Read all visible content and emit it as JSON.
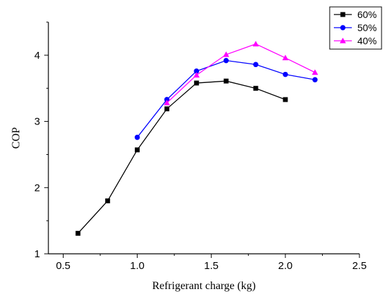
{
  "chart_data": {
    "type": "line",
    "title": "",
    "xlabel": "Refrigerant charge (kg)",
    "ylabel": "COP",
    "xlim": [
      0.4,
      2.5
    ],
    "ylim": [
      1,
      4.5
    ],
    "xticks": [
      "0.5",
      "1.0",
      "1.5",
      "2.0",
      "2.5"
    ],
    "yticks": [
      "1",
      "2",
      "3",
      "4"
    ],
    "grid": false,
    "legend_position": "top-right",
    "series": [
      {
        "name": "60%",
        "color": "#000000",
        "marker": "square",
        "x": [
          0.6,
          0.8,
          1.0,
          1.2,
          1.4,
          1.6,
          1.8,
          2.0
        ],
        "y": [
          1.31,
          1.8,
          2.57,
          3.19,
          3.58,
          3.61,
          3.5,
          3.33
        ]
      },
      {
        "name": "50%",
        "color": "#0000ff",
        "marker": "circle",
        "x": [
          1.0,
          1.2,
          1.4,
          1.6,
          1.8,
          2.0,
          2.2
        ],
        "y": [
          2.76,
          3.33,
          3.76,
          3.92,
          3.86,
          3.71,
          3.63
        ]
      },
      {
        "name": "40%",
        "color": "#ff00ff",
        "marker": "triangle",
        "x": [
          1.2,
          1.4,
          1.6,
          1.8,
          2.0,
          2.2
        ],
        "y": [
          3.28,
          3.7,
          4.01,
          4.17,
          3.96,
          3.74
        ]
      }
    ]
  }
}
